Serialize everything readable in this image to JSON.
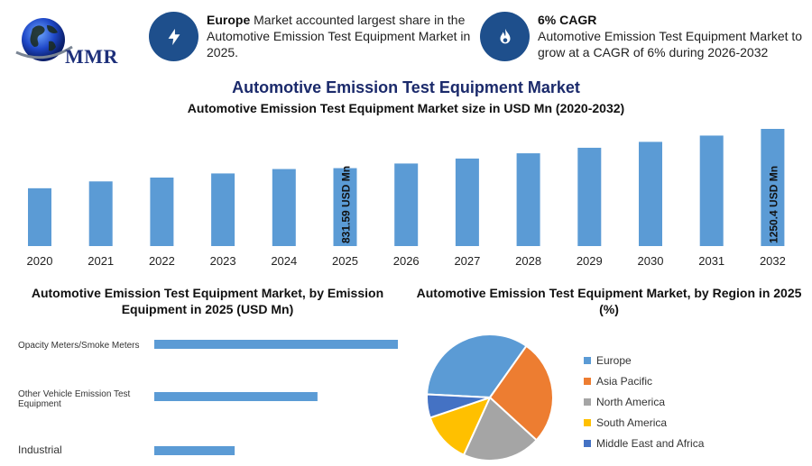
{
  "logo": {
    "text": "MMR"
  },
  "callouts": [
    {
      "icon": "lightning-icon",
      "bold": "Europe",
      "text": " Market accounted largest share in the Automotive Emission Test Equipment Market in 2025."
    },
    {
      "icon": "flame-icon",
      "bold": "6% CAGR",
      "text": "Automotive Emission Test Equipment Market to grow at a CAGR of 6% during 2026-2032"
    }
  ],
  "title": "Automotive Emission Test Equipment Market",
  "colors": {
    "bar": "#5b9bd5",
    "accent": "#1e4f8c",
    "title": "#1b2a6b"
  },
  "chart_data": [
    {
      "type": "bar",
      "title": "Automotive Emission Test Equipment Market size in USD Mn (2020-2032)",
      "categories": [
        "2020",
        "2021",
        "2022",
        "2023",
        "2024",
        "2025",
        "2026",
        "2027",
        "2028",
        "2029",
        "2030",
        "2031",
        "2032"
      ],
      "values": [
        617,
        690,
        731,
        775,
        822,
        831.59,
        881,
        934,
        990,
        1049,
        1112,
        1179,
        1250.4
      ],
      "data_labels": [
        {
          "index": 5,
          "text": "831.59 USD Mn"
        },
        {
          "index": 12,
          "text": "1250.4 USD Mn"
        }
      ],
      "xlabel": "",
      "ylabel": "",
      "grid": false
    },
    {
      "type": "bar",
      "orientation": "horizontal",
      "title": "Automotive Emission Test Equipment Market, by Emission Equipment in 2025 (USD Mn)",
      "categories": [
        "Opacity Meters/Smoke Meters",
        "Other Vehicle Emission Test Equipment",
        "Industrial"
      ],
      "values": [
        100,
        67,
        33
      ],
      "grid": false
    },
    {
      "type": "pie",
      "title": "Automotive Emission Test Equipment Market, by Region in 2025 (%)",
      "categories": [
        "Europe",
        "Asia Pacific",
        "North America",
        "South America",
        "Middle East and Africa"
      ],
      "values": [
        34,
        27,
        20,
        13,
        6
      ],
      "colors": [
        "#5b9bd5",
        "#ed7d31",
        "#a5a5a5",
        "#ffc000",
        "#4472c4"
      ],
      "legend": "right"
    }
  ]
}
